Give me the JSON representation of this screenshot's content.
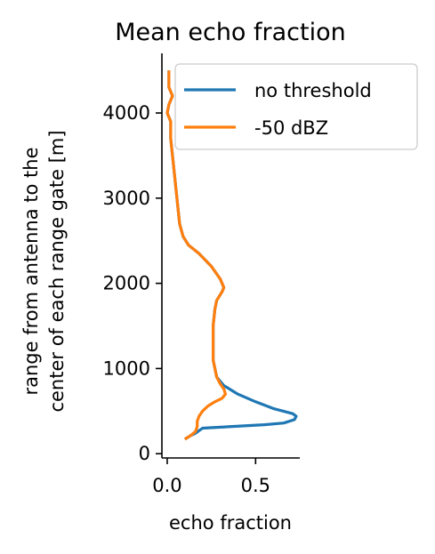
{
  "chart_data": {
    "type": "line",
    "title": "Mean echo fraction",
    "xlabel": "echo fraction",
    "ylabel_lines": [
      "range from antenna to the",
      "center of each range gate [m]"
    ],
    "xlim": [
      -0.03,
      0.75
    ],
    "ylim": [
      -50,
      4700
    ],
    "xticks": [
      0.0,
      0.5
    ],
    "xtick_labels": [
      "0.0",
      "0.5"
    ],
    "yticks": [
      0,
      1000,
      2000,
      3000,
      4000
    ],
    "ytick_labels": [
      "0",
      "1000",
      "2000",
      "3000",
      "4000"
    ],
    "grid": false,
    "legend_position": "top-right",
    "series": [
      {
        "name": "no threshold",
        "color": "#1f77b4",
        "points": [
          [
            0.1,
            170
          ],
          [
            0.13,
            210
          ],
          [
            0.16,
            240
          ],
          [
            0.18,
            270
          ],
          [
            0.2,
            300
          ],
          [
            0.55,
            340
          ],
          [
            0.66,
            360
          ],
          [
            0.72,
            400
          ],
          [
            0.73,
            440
          ],
          [
            0.71,
            470
          ],
          [
            0.6,
            530
          ],
          [
            0.5,
            610
          ],
          [
            0.4,
            700
          ],
          [
            0.32,
            800
          ],
          [
            0.28,
            900
          ],
          [
            0.27,
            1000
          ],
          [
            0.26,
            1100
          ],
          [
            0.26,
            1300
          ],
          [
            0.26,
            1500
          ],
          [
            0.27,
            1700
          ],
          [
            0.28,
            1800
          ],
          [
            0.31,
            1900
          ],
          [
            0.32,
            1950
          ],
          [
            0.3,
            2050
          ],
          [
            0.25,
            2200
          ],
          [
            0.18,
            2350
          ],
          [
            0.12,
            2450
          ],
          [
            0.09,
            2550
          ],
          [
            0.07,
            2700
          ],
          [
            0.06,
            2900
          ],
          [
            0.05,
            3100
          ],
          [
            0.04,
            3300
          ],
          [
            0.03,
            3500
          ],
          [
            0.02,
            3700
          ],
          [
            0.02,
            3900
          ],
          [
            0.0,
            4000
          ],
          [
            0.01,
            4100
          ],
          [
            0.03,
            4200
          ],
          [
            0.01,
            4300
          ],
          [
            0.01,
            4500
          ]
        ]
      },
      {
        "name": "-50 dBZ",
        "color": "#ff7f0e",
        "points": [
          [
            0.1,
            170
          ],
          [
            0.13,
            210
          ],
          [
            0.16,
            260
          ],
          [
            0.17,
            320
          ],
          [
            0.17,
            380
          ],
          [
            0.18,
            440
          ],
          [
            0.2,
            500
          ],
          [
            0.23,
            560
          ],
          [
            0.27,
            610
          ],
          [
            0.31,
            650
          ],
          [
            0.33,
            700
          ],
          [
            0.32,
            760
          ],
          [
            0.3,
            820
          ],
          [
            0.28,
            900
          ],
          [
            0.27,
            1000
          ],
          [
            0.26,
            1100
          ],
          [
            0.26,
            1300
          ],
          [
            0.26,
            1500
          ],
          [
            0.27,
            1700
          ],
          [
            0.28,
            1800
          ],
          [
            0.31,
            1900
          ],
          [
            0.32,
            1950
          ],
          [
            0.3,
            2050
          ],
          [
            0.25,
            2200
          ],
          [
            0.18,
            2350
          ],
          [
            0.12,
            2450
          ],
          [
            0.09,
            2550
          ],
          [
            0.07,
            2700
          ],
          [
            0.06,
            2900
          ],
          [
            0.05,
            3100
          ],
          [
            0.04,
            3300
          ],
          [
            0.03,
            3500
          ],
          [
            0.02,
            3700
          ],
          [
            0.02,
            3900
          ],
          [
            0.0,
            4000
          ],
          [
            0.01,
            4100
          ],
          [
            0.03,
            4200
          ],
          [
            0.01,
            4300
          ],
          [
            0.01,
            4500
          ]
        ]
      }
    ]
  }
}
